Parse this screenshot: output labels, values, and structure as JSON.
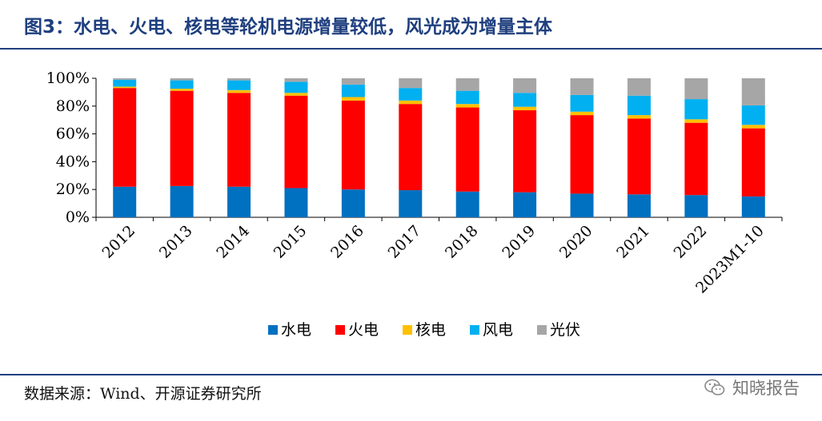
{
  "header": {
    "title": "图3：水电、火电、核电等轮机电源增量较低，风光成为增量主体"
  },
  "footer": {
    "source": "数据来源：Wind、开源证券研究所",
    "watermark": "知晓报告"
  },
  "chart_data": {
    "type": "bar",
    "stacked": true,
    "categories": [
      "2012",
      "2013",
      "2014",
      "2015",
      "2016",
      "2017",
      "2018",
      "2019",
      "2020",
      "2021",
      "2022",
      "2023M1-10"
    ],
    "series": [
      {
        "name": "水电",
        "color": "#0070c0",
        "values": [
          22,
          22.5,
          22,
          21,
          20,
          19.5,
          18.5,
          18,
          17,
          16.5,
          16,
          15
        ]
      },
      {
        "name": "火电",
        "color": "#ff0000",
        "values": [
          71,
          68.5,
          67.5,
          66.5,
          64,
          62,
          60.5,
          59,
          56.5,
          54.5,
          52,
          49
        ]
      },
      {
        "name": "核电",
        "color": "#ffc000",
        "values": [
          1,
          1.5,
          2,
          2,
          2.5,
          2.5,
          2.5,
          2.5,
          2.5,
          2.5,
          2.5,
          2.5
        ]
      },
      {
        "name": "风电",
        "color": "#00b0f0",
        "values": [
          5,
          6,
          7,
          8,
          9,
          9,
          9.5,
          10,
          12,
          14,
          14.5,
          14
        ]
      },
      {
        "name": "光伏",
        "color": "#a6a6a6",
        "values": [
          1,
          1.5,
          1.5,
          2.5,
          4.5,
          7,
          9,
          10.5,
          12,
          12.5,
          15,
          19.5
        ]
      }
    ],
    "yticks": [
      "0%",
      "20%",
      "40%",
      "60%",
      "80%",
      "100%"
    ],
    "ylim": [
      0,
      100
    ],
    "legend_position": "bottom",
    "grid": false
  }
}
